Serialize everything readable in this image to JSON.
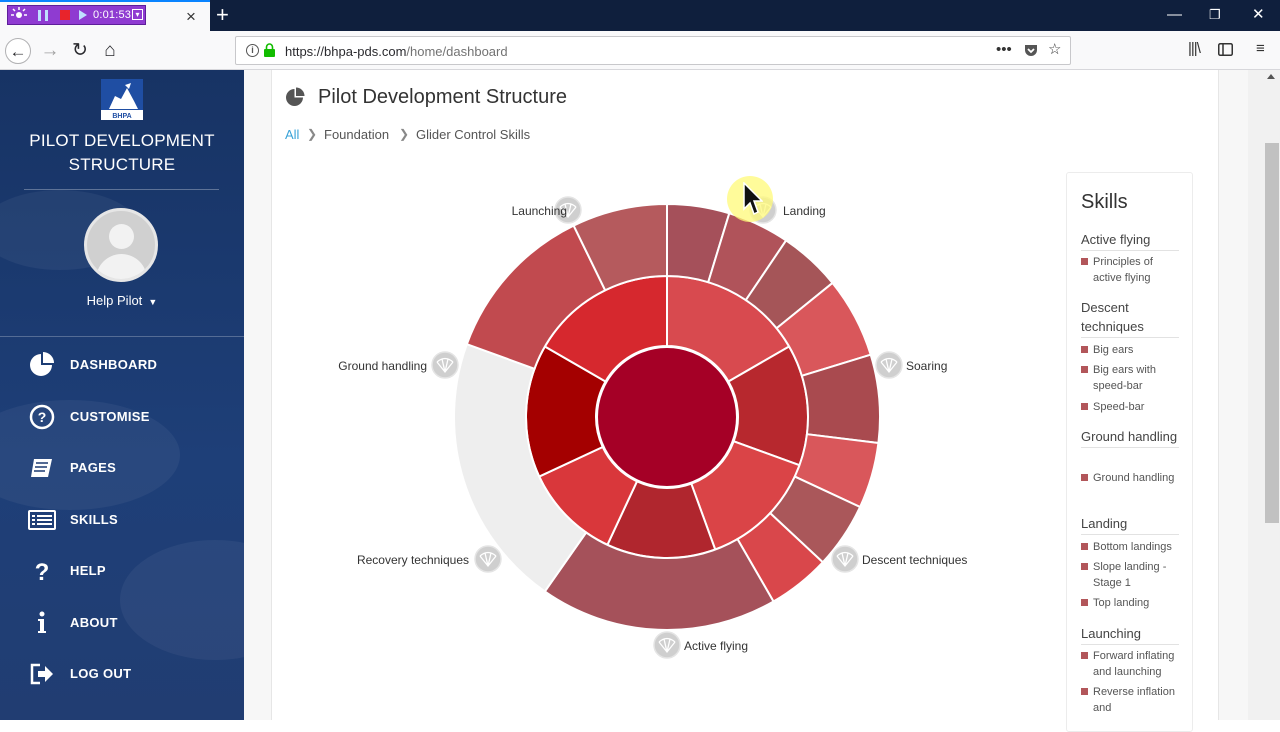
{
  "browser": {
    "tab_close": "×",
    "recorder_time": "0:01:53",
    "url_host": "https://bhpa-pds.com",
    "url_path": "/home/dashboard",
    "new_tab": "+"
  },
  "sidebar": {
    "logo_text": "BHPA",
    "title_line1": "PILOT DEVELOPMENT",
    "title_line2": "STRUCTURE",
    "user": "Help Pilot",
    "menu": [
      {
        "label": "DASHBOARD",
        "icon": "pie-chart-icon"
      },
      {
        "label": "CUSTOMISE",
        "icon": "question-circle-icon"
      },
      {
        "label": "PAGES",
        "icon": "book-icon"
      },
      {
        "label": "SKILLS",
        "icon": "list-icon"
      },
      {
        "label": "HELP",
        "icon": "question-icon"
      },
      {
        "label": "ABOUT",
        "icon": "info-icon"
      },
      {
        "label": "LOG OUT",
        "icon": "sign-out-icon"
      }
    ]
  },
  "main": {
    "title": "Pilot Development Structure",
    "breadcrumb": [
      "All",
      "Foundation",
      "Glider Control Skills"
    ]
  },
  "chart_data": {
    "type": "sunburst",
    "categories": [
      "Launching",
      "Landing",
      "Soaring",
      "Descent techniques",
      "Active flying",
      "Recovery techniques",
      "Ground handling"
    ]
  },
  "skills": {
    "title": "Skills",
    "groups": [
      {
        "name": "Active flying",
        "items": [
          "Principles of active flying"
        ]
      },
      {
        "name": "Descent techniques",
        "items": [
          "Big ears",
          "Big ears with speed-bar",
          "Speed-bar"
        ]
      },
      {
        "name": "Ground handling",
        "items": [
          "Ground handling"
        ]
      },
      {
        "name": "Landing",
        "items": [
          "Bottom landings",
          "Slope landing - Stage 1",
          "Top landing"
        ]
      },
      {
        "name": "Launching",
        "items": [
          "Forward inflating and launching",
          "Reverse inflation and"
        ]
      }
    ]
  },
  "colors": {
    "sidebar_bg": "#1b3a70",
    "accent_link": "#3aa3d8",
    "skill_marker": "#b2565a"
  }
}
